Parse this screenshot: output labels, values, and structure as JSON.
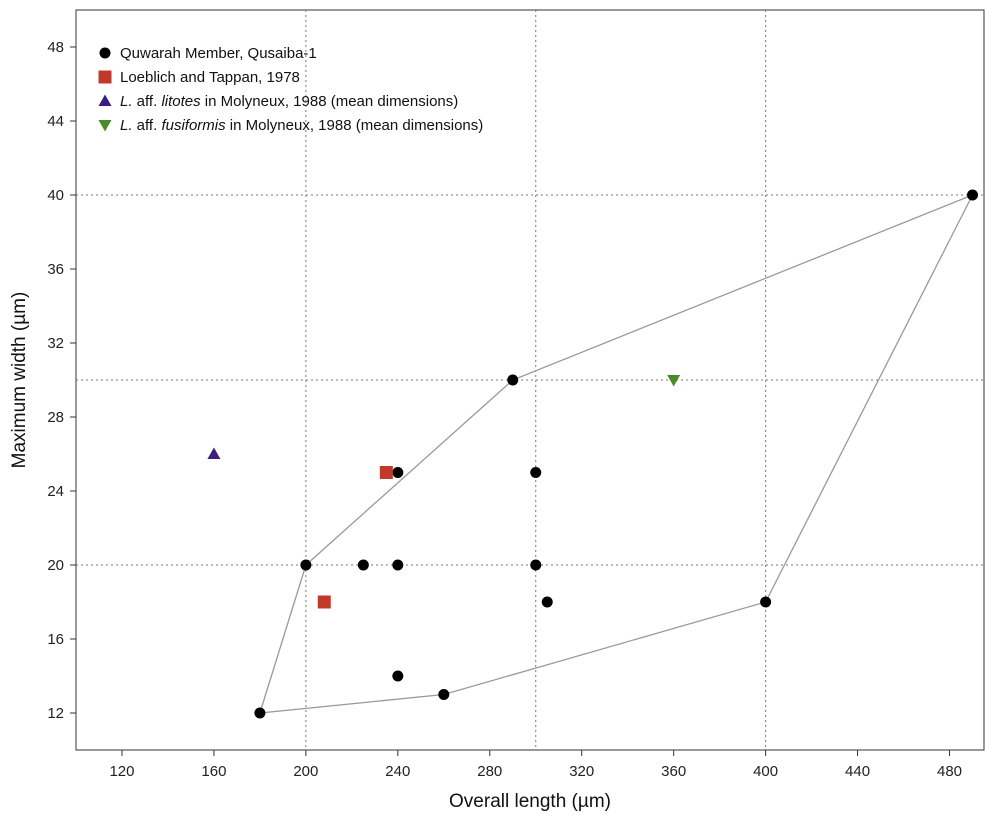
{
  "chart_data": {
    "type": "scatter",
    "xlabel": "Overall length (µm)",
    "ylabel": "Maximum width (µm)",
    "xlim": [
      100,
      495
    ],
    "ylim": [
      10,
      50
    ],
    "xticks": [
      120,
      160,
      200,
      240,
      280,
      320,
      360,
      400,
      440,
      480
    ],
    "yticks": [
      12,
      16,
      20,
      24,
      28,
      32,
      36,
      40,
      44,
      48
    ],
    "grid": {
      "vertical_dotted_at_x": [
        200,
        300,
        400
      ],
      "horizontal_dotted_at_y": [
        20,
        30,
        40
      ]
    },
    "legend_position": "top-left",
    "series": [
      {
        "name": "Quwarah Member, Qusaiba-1",
        "marker": "circle",
        "color": "#000000",
        "points": [
          {
            "x": 180,
            "y": 12
          },
          {
            "x": 200,
            "y": 20
          },
          {
            "x": 225,
            "y": 20
          },
          {
            "x": 240,
            "y": 25
          },
          {
            "x": 240,
            "y": 20
          },
          {
            "x": 240,
            "y": 14
          },
          {
            "x": 260,
            "y": 13
          },
          {
            "x": 290,
            "y": 30
          },
          {
            "x": 300,
            "y": 25
          },
          {
            "x": 300,
            "y": 20
          },
          {
            "x": 305,
            "y": 18
          },
          {
            "x": 400,
            "y": 18
          },
          {
            "x": 490,
            "y": 40
          }
        ]
      },
      {
        "name": "Loeblich and Tappan, 1978",
        "marker": "square",
        "color": "#c0392b",
        "points": [
          {
            "x": 235,
            "y": 25
          },
          {
            "x": 208,
            "y": 18
          }
        ]
      },
      {
        "name_italic": "L.",
        "name_mid": " aff. ",
        "name_italic2": "litotes",
        "name_rest": " in Molyneux, 1988 (mean dimensions)",
        "marker": "triangle-up",
        "color": "#3b1f80",
        "points": [
          {
            "x": 160,
            "y": 26
          }
        ]
      },
      {
        "name_italic": "L.",
        "name_mid": " aff. ",
        "name_italic2": "fusiformis",
        "name_rest": " in Molyneux, 1988 (mean dimensions)",
        "marker": "triangle-down",
        "color": "#4a8a2a",
        "points": [
          {
            "x": 360,
            "y": 30
          }
        ]
      }
    ],
    "hull": {
      "color": "#999999",
      "vertices": [
        {
          "x": 180,
          "y": 12
        },
        {
          "x": 200,
          "y": 20
        },
        {
          "x": 290,
          "y": 30
        },
        {
          "x": 490,
          "y": 40
        },
        {
          "x": 400,
          "y": 18
        },
        {
          "x": 260,
          "y": 13
        }
      ]
    }
  }
}
